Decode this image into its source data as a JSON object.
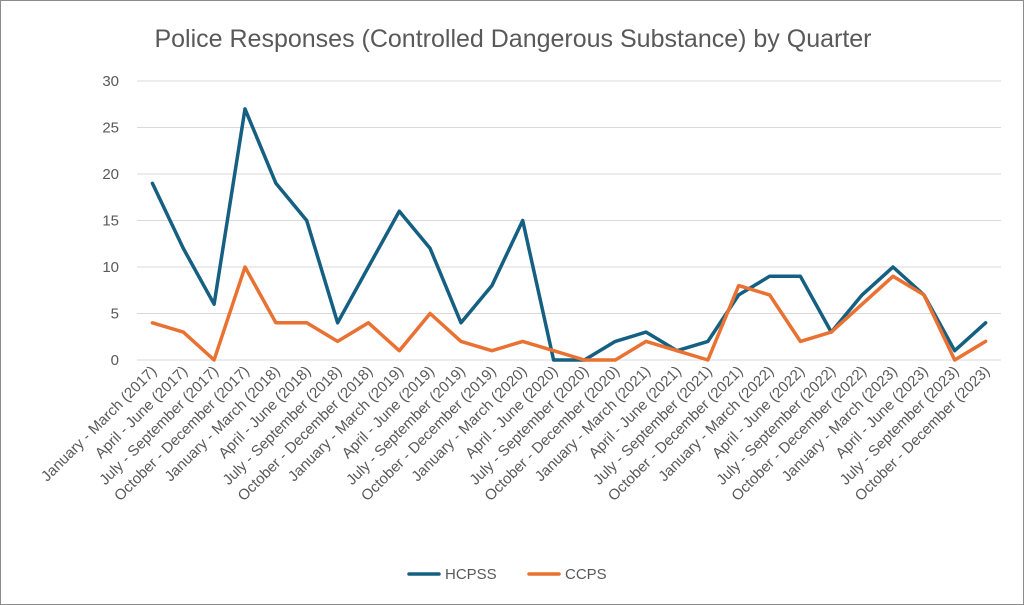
{
  "chart_data": {
    "type": "line",
    "title": "Police Responses (Controlled Dangerous Substance) by Quarter",
    "categories": [
      "January - March (2017)",
      "April - June (2017)",
      "July - September (2017)",
      "October - December (2017)",
      "January - March (2018)",
      "April - June (2018)",
      "July - September (2018)",
      "October - December (2018)",
      "January - March (2019)",
      "April - June (2019)",
      "July - September (2019)",
      "October - December (2019)",
      "January - March (2020)",
      "April - June (2020)",
      "July - September (2020)",
      "October - December (2020)",
      "January - March (2021)",
      "April - June (2021)",
      "July - September (2021)",
      "October - December (2021)",
      "January - March (2022)",
      "April - June (2022)",
      "July - September (2022)",
      "October - December (2022)",
      "January - March (2023)",
      "April - June (2023)",
      "July - September (2023)",
      "October - December (2023)"
    ],
    "series": [
      {
        "name": "HCPSS",
        "color": "#156082",
        "values": [
          19,
          12,
          6,
          27,
          19,
          15,
          4,
          10,
          16,
          12,
          4,
          8,
          15,
          0,
          0,
          2,
          3,
          1,
          2,
          7,
          9,
          9,
          3,
          7,
          10,
          7,
          1,
          4
        ]
      },
      {
        "name": "CCPS",
        "color": "#E97132",
        "values": [
          4,
          3,
          0,
          10,
          4,
          4,
          2,
          4,
          1,
          5,
          2,
          1,
          2,
          1,
          0,
          0,
          2,
          1,
          0,
          8,
          7,
          2,
          3,
          6,
          9,
          7,
          0,
          2
        ]
      }
    ],
    "ylim": [
      0,
      30
    ],
    "yticks": [
      "0",
      "5",
      "10",
      "15",
      "20",
      "25",
      "30"
    ],
    "grid": true,
    "legend": "bottom"
  }
}
